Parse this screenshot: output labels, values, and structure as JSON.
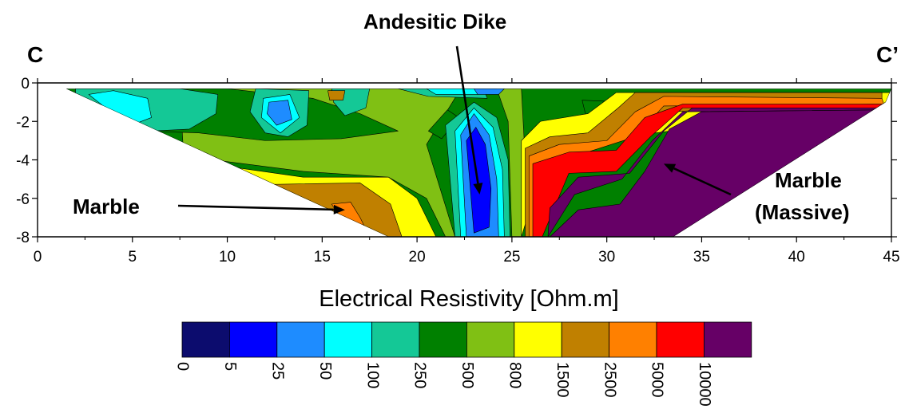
{
  "chart_data": {
    "type": "heatmap",
    "title": "",
    "section_labels": {
      "left": "C",
      "right": "C’"
    },
    "xlabel": "",
    "ylabel": "",
    "xlim": [
      0,
      45
    ],
    "ylim": [
      -8,
      0
    ],
    "x_ticks": [
      "0",
      "5",
      "10",
      "15",
      "20",
      "25",
      "30",
      "35",
      "40",
      "45"
    ],
    "y_ticks": [
      "0",
      "-2",
      "-4",
      "-6",
      "-8"
    ],
    "colorbar": {
      "title": "Electrical Resistivity [Ohm.m]",
      "labels": [
        "0",
        "5",
        "25",
        "50",
        "100",
        "250",
        "500",
        "800",
        "1500",
        "2500",
        "5000",
        "10000"
      ],
      "colors": [
        "#0c0c6e",
        "#0000ff",
        "#1e8cff",
        "#00ffff",
        "#14c896",
        "#008000",
        "#80c014",
        "#ffff00",
        "#c08000",
        "#ff8000",
        "#ff0000",
        "#660066"
      ]
    },
    "annotations": [
      {
        "text": "Andesitic Dike",
        "target_x": 23.3,
        "target_y": -5.8
      },
      {
        "text": "Marble",
        "target_x": 16.2,
        "target_y": -6.6
      },
      {
        "text": "Marble (Massive)",
        "lines": [
          "Marble",
          "(Massive)"
        ],
        "target_x": 33.0,
        "target_y": -4.2
      }
    ],
    "zones": [
      {
        "class": "500",
        "polygon": [
          [
            7.7,
            -3.8
          ],
          [
            14,
            -4.6
          ],
          [
            18.5,
            -4.9
          ],
          [
            20.5,
            -6
          ],
          [
            21.5,
            -8
          ],
          [
            25.5,
            -8
          ],
          [
            25.7,
            -4
          ],
          [
            25.5,
            -0.3
          ],
          [
            18,
            -0.3
          ],
          [
            7.5,
            -0.3
          ]
        ]
      },
      {
        "class": "250",
        "polygon": [
          [
            2,
            -0.3
          ],
          [
            10,
            -0.3
          ],
          [
            14.5,
            -0.8
          ],
          [
            17,
            -1.6
          ],
          [
            19,
            -2.5
          ],
          [
            16,
            -2.9
          ],
          [
            12,
            -3
          ],
          [
            8.5,
            -2.6
          ],
          [
            5.5,
            -2.5
          ],
          [
            4,
            -2.3
          ],
          [
            2,
            -1.2
          ]
        ]
      },
      {
        "class": "250",
        "polygon": [
          [
            20.5,
            -3.2
          ],
          [
            22.3,
            -0.3
          ],
          [
            24.2,
            -0.3
          ],
          [
            24.8,
            -2
          ],
          [
            24.9,
            -5
          ],
          [
            25,
            -8
          ],
          [
            22,
            -8
          ]
        ]
      },
      {
        "class": "250",
        "polygon": [
          [
            20.6,
            -2.5
          ],
          [
            21.6,
            -1.4
          ],
          [
            22.2,
            -1.8
          ],
          [
            21.3,
            -2.9
          ]
        ]
      },
      {
        "class": "250",
        "polygon": [
          [
            28.7,
            -0.9
          ],
          [
            31,
            -1
          ],
          [
            30.8,
            -2.3
          ],
          [
            29,
            -2.1
          ]
        ]
      },
      {
        "class": "100",
        "polygon": [
          [
            2,
            -0.3
          ],
          [
            7.5,
            -0.3
          ],
          [
            9.5,
            -0.6
          ],
          [
            9.4,
            -1.6
          ],
          [
            8,
            -2.4
          ],
          [
            6,
            -2.5
          ],
          [
            4,
            -2.3
          ],
          [
            2,
            -1.2
          ]
        ]
      },
      {
        "class": "100",
        "polygon": [
          [
            11.5,
            -0.3
          ],
          [
            14.3,
            -0.4
          ],
          [
            14.2,
            -2.2
          ],
          [
            13.2,
            -2.8
          ],
          [
            12,
            -2.6
          ],
          [
            11.2,
            -1.5
          ]
        ]
      },
      {
        "class": "100",
        "polygon": [
          [
            15.5,
            -0.3
          ],
          [
            17.5,
            -0.3
          ],
          [
            17.3,
            -1.3
          ],
          [
            16.2,
            -1.7
          ],
          [
            15.6,
            -1
          ]
        ]
      },
      {
        "class": "100",
        "polygon": [
          [
            21.5,
            -2.2
          ],
          [
            23,
            -1
          ],
          [
            24.2,
            -1.8
          ],
          [
            24.8,
            -4
          ],
          [
            24.9,
            -8
          ],
          [
            22,
            -8
          ]
        ]
      },
      {
        "class": "100",
        "polygon": [
          [
            19,
            -0.3
          ],
          [
            23.5,
            -0.3
          ],
          [
            23.7,
            -0.8
          ],
          [
            20.6,
            -0.7
          ]
        ]
      },
      {
        "class": "50",
        "polygon": [
          [
            2.7,
            -0.6
          ],
          [
            4,
            -0.4
          ],
          [
            5.8,
            -0.8
          ],
          [
            6,
            -1.8
          ],
          [
            5.2,
            -2.1
          ],
          [
            4.1,
            -1.7
          ]
        ]
      },
      {
        "class": "50",
        "polygon": [
          [
            11.9,
            -0.8
          ],
          [
            13.3,
            -0.6
          ],
          [
            13.8,
            -1.8
          ],
          [
            12.8,
            -2.6
          ],
          [
            11.8,
            -1.8
          ]
        ]
      },
      {
        "class": "50",
        "polygon": [
          [
            22,
            -2.5
          ],
          [
            23,
            -1.3
          ],
          [
            24,
            -2.3
          ],
          [
            24.5,
            -4.5
          ],
          [
            24.6,
            -8
          ],
          [
            22.3,
            -8
          ]
        ]
      },
      {
        "class": "50",
        "polygon": [
          [
            20.5,
            -0.3
          ],
          [
            23.5,
            -0.3
          ],
          [
            23.2,
            -0.6
          ],
          [
            21,
            -0.6
          ]
        ]
      },
      {
        "class": "25",
        "polygon": [
          [
            12.2,
            -1
          ],
          [
            13.2,
            -0.9
          ],
          [
            13.4,
            -1.9
          ],
          [
            12.6,
            -2.2
          ],
          [
            12.1,
            -1.6
          ]
        ]
      },
      {
        "class": "25",
        "polygon": [
          [
            22.3,
            -2.7
          ],
          [
            23,
            -1.6
          ],
          [
            23.8,
            -2.7
          ],
          [
            24.2,
            -5
          ],
          [
            24.3,
            -8
          ],
          [
            22.6,
            -8
          ]
        ]
      },
      {
        "class": "25",
        "polygon": [
          [
            23,
            -0.3
          ],
          [
            24.6,
            -0.3
          ],
          [
            24.3,
            -0.6
          ],
          [
            23.2,
            -0.6
          ]
        ]
      },
      {
        "class": "5",
        "polygon": [
          [
            22.6,
            -3
          ],
          [
            23.1,
            -2.3
          ],
          [
            23.6,
            -3.2
          ],
          [
            23.9,
            -5.5
          ],
          [
            23.8,
            -7.5
          ],
          [
            23,
            -7.8
          ]
        ]
      },
      {
        "class": "800",
        "polygon": [
          [
            9,
            -4.2
          ],
          [
            14,
            -4.9
          ],
          [
            18.5,
            -4.9
          ],
          [
            20,
            -6
          ],
          [
            21,
            -8
          ],
          [
            13,
            -8
          ]
        ]
      },
      {
        "class": "800",
        "polygon": [
          [
            25.5,
            -3
          ],
          [
            26.5,
            -2
          ],
          [
            29,
            -1.6
          ],
          [
            30.5,
            -0.5
          ],
          [
            45,
            -0.5
          ],
          [
            45,
            -1
          ],
          [
            31,
            -2.8
          ],
          [
            27,
            -3.2
          ],
          [
            25.5,
            -8
          ],
          [
            25.5,
            -8
          ]
        ]
      },
      {
        "class": "1500",
        "polygon": [
          [
            10.8,
            -5.3
          ],
          [
            17,
            -5.2
          ],
          [
            18.6,
            -6.3
          ],
          [
            19.2,
            -8
          ],
          [
            15,
            -8
          ]
        ]
      },
      {
        "class": "1500",
        "polygon": [
          [
            25.7,
            -3.4
          ],
          [
            27,
            -2.8
          ],
          [
            29,
            -2.6
          ],
          [
            30.6,
            -1.3
          ],
          [
            31.5,
            -0.5
          ],
          [
            44.5,
            -0.5
          ],
          [
            44.5,
            -0.8
          ],
          [
            32,
            -1.6
          ],
          [
            30.5,
            -3
          ],
          [
            27,
            -3.6
          ],
          [
            26,
            -8
          ],
          [
            25.7,
            -8
          ]
        ]
      },
      {
        "class": "1500",
        "polygon": [
          [
            15.3,
            -0.4
          ],
          [
            16.2,
            -0.4
          ],
          [
            16.1,
            -0.9
          ],
          [
            15.4,
            -0.9
          ]
        ]
      },
      {
        "class": "2500",
        "polygon": [
          [
            15.5,
            -6.3
          ],
          [
            16.5,
            -6.2
          ],
          [
            17,
            -7
          ],
          [
            17.5,
            -8
          ],
          [
            16.6,
            -8
          ]
        ]
      },
      {
        "class": "2500",
        "polygon": [
          [
            25.9,
            -3.8
          ],
          [
            27.5,
            -3.2
          ],
          [
            30,
            -3
          ],
          [
            31.5,
            -1.5
          ],
          [
            33,
            -0.7
          ],
          [
            44.5,
            -0.8
          ],
          [
            44.6,
            -1.1
          ],
          [
            33,
            -1.2
          ],
          [
            31.5,
            -2.8
          ],
          [
            27.7,
            -4
          ],
          [
            26.3,
            -8
          ],
          [
            25.9,
            -8
          ]
        ]
      },
      {
        "class": "5000",
        "polygon": [
          [
            26.1,
            -4.2
          ],
          [
            28,
            -3.6
          ],
          [
            30.5,
            -3.5
          ],
          [
            32,
            -1.8
          ],
          [
            34,
            -1.1
          ],
          [
            44.6,
            -1.1
          ],
          [
            44.6,
            -1.3
          ],
          [
            34,
            -1.3
          ],
          [
            32.3,
            -2.8
          ],
          [
            30.5,
            -4.6
          ],
          [
            28,
            -4.7
          ],
          [
            26.6,
            -8
          ],
          [
            26.1,
            -8
          ]
        ]
      },
      {
        "class": "10000",
        "polygon": [
          [
            26.9,
            -8
          ],
          [
            28.3,
            -5.8
          ],
          [
            30.8,
            -5
          ],
          [
            32.4,
            -3
          ],
          [
            34,
            -1.5
          ],
          [
            44.6,
            -1.4
          ],
          [
            44.6,
            -1.3
          ],
          [
            34.5,
            -1.3
          ],
          [
            33,
            -2.5
          ],
          [
            31.2,
            -4.7
          ],
          [
            28.5,
            -4.9
          ],
          [
            27,
            -6.5
          ]
        ]
      },
      {
        "class": "10000",
        "polygon": [
          [
            27,
            -8
          ],
          [
            28.5,
            -6.6
          ],
          [
            30.7,
            -6.3
          ],
          [
            32,
            -4.6
          ],
          [
            33.3,
            -2.4
          ],
          [
            35,
            -1.5
          ],
          [
            44.6,
            -1.4
          ],
          [
            34.6,
            -8
          ]
        ]
      }
    ]
  }
}
